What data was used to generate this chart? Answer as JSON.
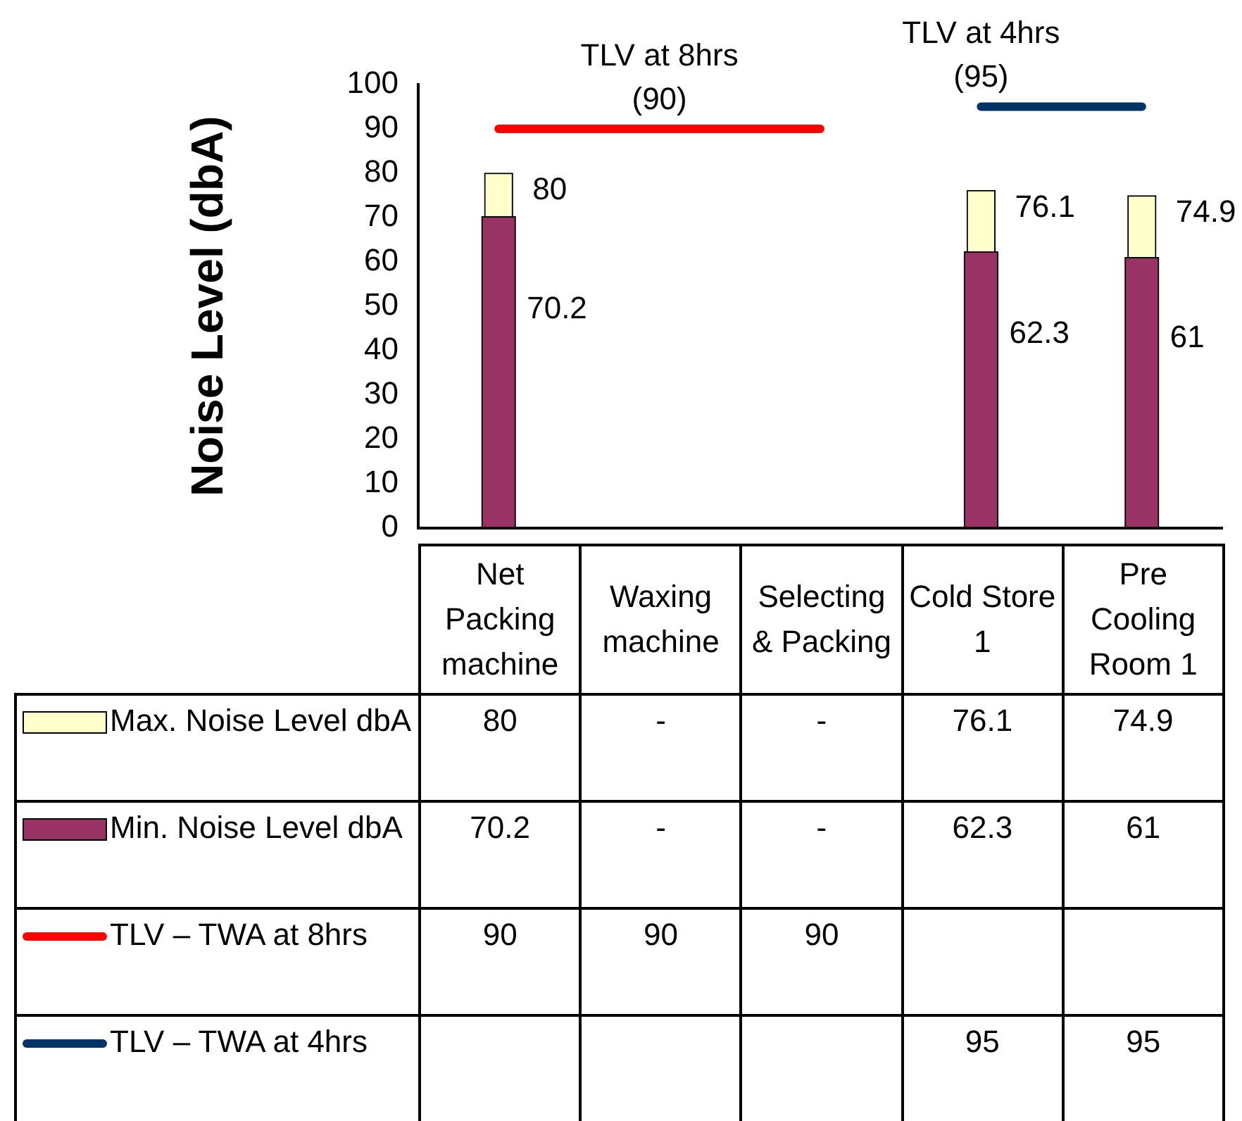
{
  "chart_data": {
    "type": "bar",
    "ylabel": "Noise Level (dbA)",
    "categories": [
      "Net Packing machine",
      "Waxing machine",
      "Selecting & Packing",
      "Cold Store 1",
      "Pre Cooling Room 1"
    ],
    "series": [
      {
        "name": "Max. Noise Level dbA",
        "color": "#ffffcc",
        "values": [
          80,
          null,
          null,
          76.1,
          74.9
        ],
        "value_labels": [
          "80",
          "-",
          "-",
          "76.1",
          "74.9"
        ]
      },
      {
        "name": "Min. Noise Level dbA",
        "color": "#993366",
        "values": [
          70.2,
          null,
          null,
          62.3,
          61
        ],
        "value_labels": [
          "70.2",
          "-",
          "-",
          "62.3",
          "61"
        ]
      },
      {
        "name": "TLV – TWA at 8hrs",
        "type": "line",
        "color": "#ff0000",
        "values": [
          90,
          90,
          90,
          null,
          null
        ],
        "value_labels": [
          "90",
          "90",
          "90",
          null,
          null
        ]
      },
      {
        "name": "TLV – TWA at 4hrs",
        "type": "line",
        "color": "#003366",
        "values": [
          null,
          null,
          null,
          95,
          95
        ],
        "value_labels": [
          null,
          null,
          null,
          "95",
          "95"
        ]
      }
    ],
    "ylim": [
      0,
      100
    ],
    "yticks": [
      0,
      10,
      20,
      30,
      40,
      50,
      60,
      70,
      80,
      90,
      100
    ],
    "grid": false,
    "legend": "bottom",
    "marker": "none",
    "annotations": [
      {
        "text": "TLV at 8hrs\n(90)",
        "x": "Waxing machine",
        "y": 90
      },
      {
        "text": "TLV at 4hrs\n(95)",
        "x": "Cold Store 1",
        "y": 95
      }
    ]
  }
}
